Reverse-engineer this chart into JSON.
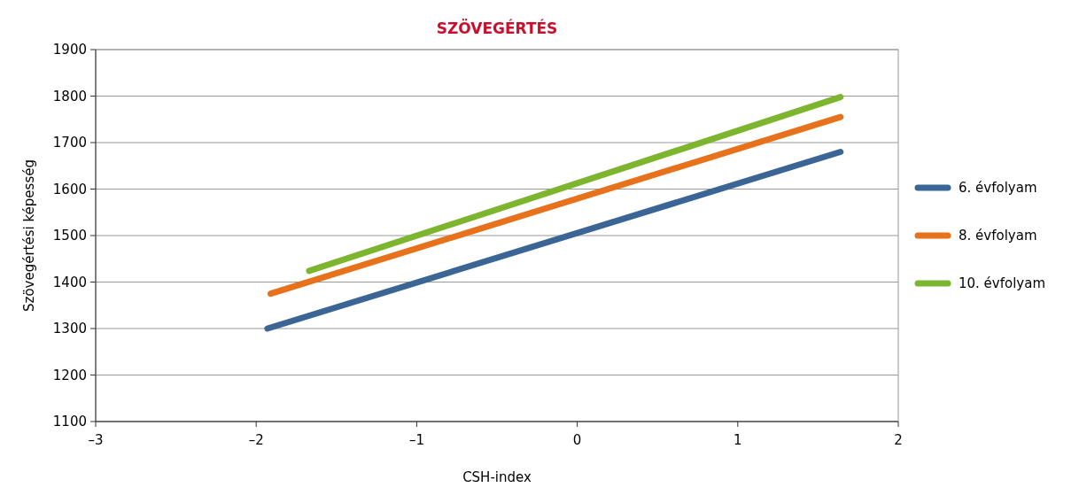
{
  "chart_data": {
    "type": "line",
    "title": "SZÖVEGÉRTÉS",
    "xlabel": "CSH-index",
    "ylabel": "Szövegértési képesség",
    "series": [
      {
        "name": "6. évfolyam",
        "color": "#3a6595",
        "x": [
          -1.93,
          1.64
        ],
        "values": [
          1300,
          1680
        ]
      },
      {
        "name": "8. évfolyam",
        "color": "#e8711c",
        "x": [
          -1.91,
          1.64
        ],
        "values": [
          1375,
          1755
        ]
      },
      {
        "name": "10. évfolyam",
        "color": "#7db52f",
        "x": [
          -1.67,
          1.64
        ],
        "values": [
          1424,
          1798
        ]
      }
    ],
    "xlim": [
      -3,
      2
    ],
    "xticks": [
      {
        "value": -3,
        "label": "–3"
      },
      {
        "value": -2,
        "label": "–2"
      },
      {
        "value": -1,
        "label": "–1"
      },
      0,
      1,
      2
    ],
    "ylim": [
      1100,
      1900
    ],
    "yticks": [
      1100,
      1200,
      1300,
      1400,
      1500,
      1600,
      1700,
      1800,
      1900
    ],
    "grid": "y",
    "legend": "right",
    "marker": "none",
    "line_style": "solid"
  }
}
